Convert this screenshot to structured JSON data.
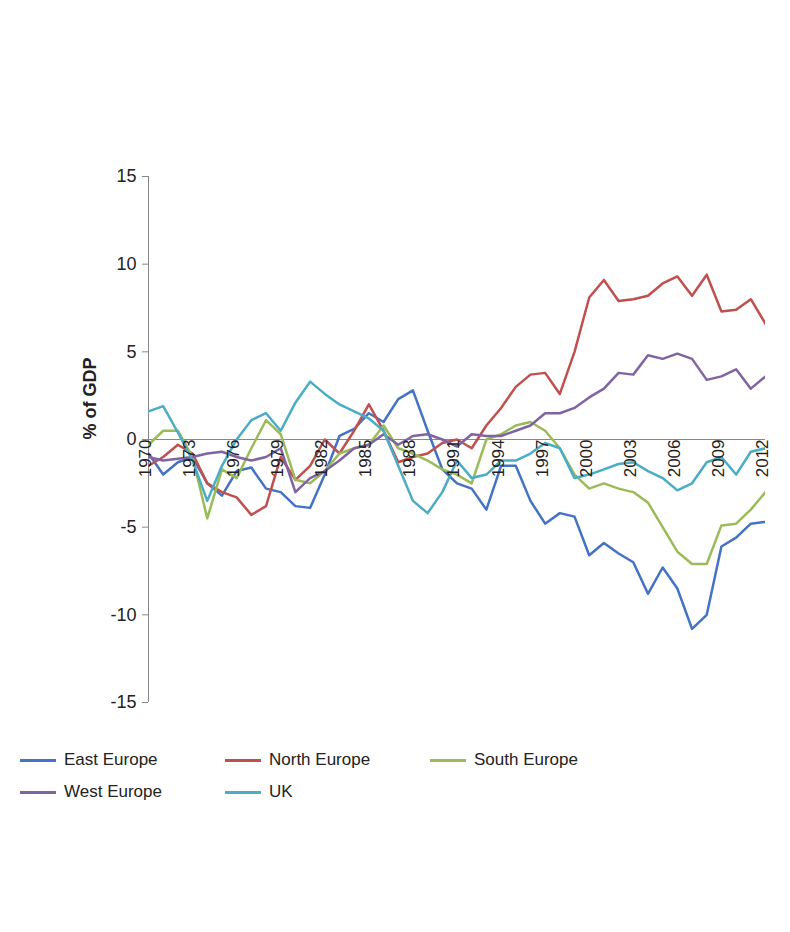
{
  "chart_data": {
    "type": "line",
    "y_label": "% of GDP",
    "x": [
      1970,
      1971,
      1972,
      1973,
      1974,
      1975,
      1976,
      1977,
      1978,
      1979,
      1980,
      1981,
      1982,
      1983,
      1984,
      1985,
      1986,
      1987,
      1988,
      1989,
      1990,
      1991,
      1992,
      1993,
      1994,
      1995,
      1996,
      1997,
      1998,
      1999,
      2000,
      2001,
      2002,
      2003,
      2004,
      2005,
      2006,
      2007,
      2008,
      2009,
      2010,
      2011,
      2012
    ],
    "xlim": [
      1970,
      2012
    ],
    "xticks": [
      1970,
      1973,
      1976,
      1979,
      1982,
      1985,
      1988,
      1991,
      1994,
      1997,
      2000,
      2003,
      2006,
      2009,
      2012
    ],
    "ylim": [
      -15,
      15
    ],
    "yticks": [
      -15,
      -10,
      -5,
      0,
      5,
      10,
      15
    ],
    "grid": false,
    "legend": "bottom",
    "series": [
      {
        "name": "East Europe",
        "color": "#4472C4",
        "values": [
          -0.8,
          -2.0,
          -1.3,
          -1.0,
          -2.5,
          -3.2,
          -1.8,
          -1.6,
          -2.8,
          -3.0,
          -3.8,
          -3.9,
          -2.0,
          0.2,
          0.6,
          1.5,
          1.0,
          2.3,
          2.8,
          0.5,
          -1.7,
          -2.5,
          -2.8,
          -4.0,
          -1.5,
          -1.5,
          -3.5,
          -4.8,
          -4.2,
          -4.4,
          -6.6,
          -5.9,
          -6.5,
          -7.0,
          -8.8,
          -7.3,
          -8.5,
          -10.8,
          -10.0,
          -6.1,
          -5.6,
          -4.8,
          -4.7
        ]
      },
      {
        "name": "North Europe",
        "color": "#C0504D",
        "values": [
          -1.5,
          -1.0,
          -0.3,
          -0.8,
          -2.5,
          -3.0,
          -3.3,
          -4.3,
          -3.8,
          -1.0,
          -2.3,
          -1.5,
          0.0,
          -0.8,
          0.5,
          2.0,
          0.5,
          -1.3,
          -1.0,
          -0.8,
          -0.2,
          0.0,
          -0.5,
          0.8,
          1.8,
          3.0,
          3.7,
          3.8,
          2.6,
          5.0,
          8.1,
          9.1,
          7.9,
          8.0,
          8.2,
          8.9,
          9.3,
          8.2,
          9.4,
          7.3,
          7.4,
          8.0,
          6.6
        ]
      },
      {
        "name": "South Europe",
        "color": "#9BBB59",
        "values": [
          -0.3,
          0.5,
          0.5,
          -1.0,
          -4.5,
          -1.7,
          -2.2,
          -0.5,
          1.1,
          0.3,
          -2.3,
          -2.5,
          -1.8,
          -0.8,
          -0.5,
          -0.3,
          0.8,
          -0.5,
          -0.8,
          -1.2,
          -1.7,
          -2.0,
          -2.5,
          0.0,
          0.3,
          0.8,
          1.0,
          0.5,
          -0.5,
          -2.0,
          -2.8,
          -2.5,
          -2.8,
          -3.0,
          -3.6,
          -5.0,
          -6.4,
          -7.1,
          -7.1,
          -4.9,
          -4.8,
          -4.0,
          -3.0
        ]
      },
      {
        "name": "West Europe",
        "color": "#8064A2",
        "values": [
          -1.0,
          -1.2,
          -1.1,
          -1.0,
          -0.8,
          -0.7,
          -1.0,
          -1.2,
          -1.0,
          -0.5,
          -3.0,
          -2.2,
          -1.8,
          -1.2,
          -0.5,
          -0.3,
          0.3,
          -0.3,
          0.2,
          0.3,
          0.0,
          -0.4,
          0.3,
          0.2,
          0.2,
          0.5,
          0.8,
          1.5,
          1.5,
          1.8,
          2.4,
          2.9,
          3.8,
          3.7,
          4.8,
          4.6,
          4.9,
          4.6,
          3.4,
          3.6,
          4.0,
          2.9,
          3.6
        ]
      },
      {
        "name": "UK",
        "color": "#4BACC6",
        "values": [
          1.6,
          1.9,
          0.4,
          -1.2,
          -3.5,
          -1.5,
          0.0,
          1.1,
          1.5,
          0.5,
          2.1,
          3.3,
          2.6,
          2.0,
          1.6,
          1.2,
          0.5,
          -1.5,
          -3.5,
          -4.2,
          -3.0,
          -1.2,
          -2.2,
          -2.0,
          -1.2,
          -1.2,
          -0.8,
          -0.2,
          -0.5,
          -2.2,
          -2.0,
          -1.7,
          -1.4,
          -1.3,
          -1.8,
          -2.2,
          -2.9,
          -2.5,
          -1.3,
          -1.0,
          -2.0,
          -0.7,
          -0.5
        ]
      }
    ]
  }
}
